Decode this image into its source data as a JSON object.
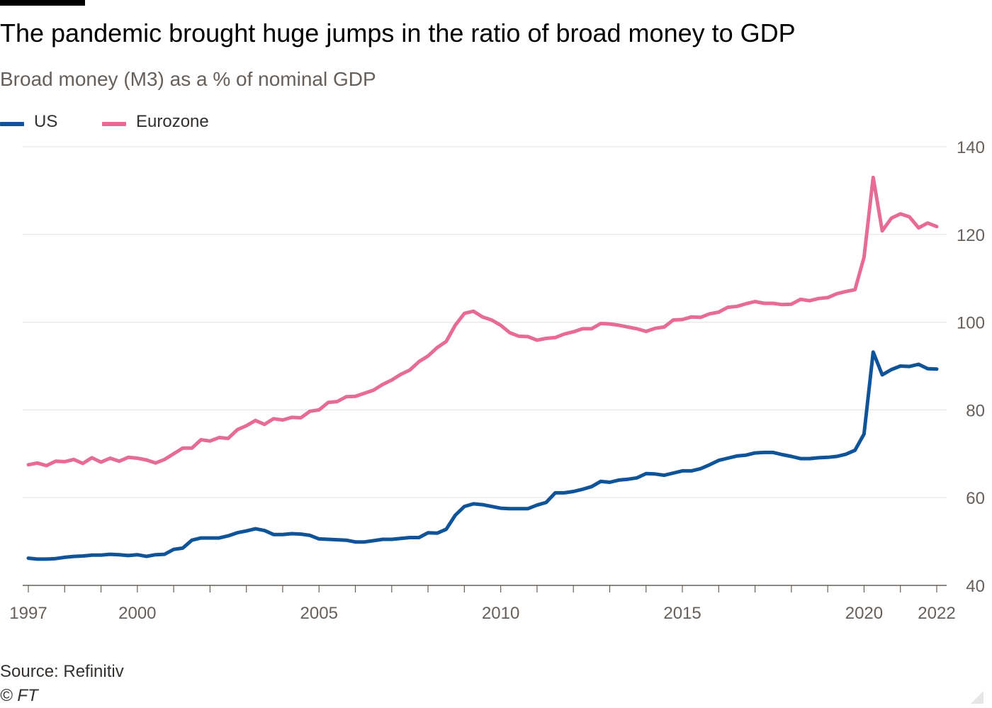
{
  "header": {
    "title": "The pandemic brought huge jumps in the ratio of broad money to GDP",
    "subtitle": "Broad money (M3) as a % of nominal GDP"
  },
  "footer": {
    "source": "Source: Refinitiv",
    "copyright": "© FT"
  },
  "colors": {
    "us": "#0f5499",
    "eurozone": "#e66b95",
    "grid": "#e6e6e6",
    "axis": "#66605c"
  },
  "chart_data": {
    "type": "line",
    "title": "The pandemic brought huge jumps in the ratio of broad money to GDP",
    "subtitle": "Broad money (M3) as a % of nominal GDP",
    "xlabel": "",
    "ylabel": "",
    "xlim": [
      1997,
      2022
    ],
    "ylim": [
      40,
      140
    ],
    "yticks": [
      140,
      120,
      100,
      80,
      60,
      40
    ],
    "xticks": [
      "1997",
      "2000",
      "2005",
      "2010",
      "2015",
      "2020",
      "2022"
    ],
    "grid": true,
    "y_axis_side": "right",
    "legend_position": "top-left",
    "series": [
      {
        "name": "US",
        "color": "#0f5499",
        "x": [
          1997.0,
          1997.25,
          1997.5,
          1997.75,
          1998.0,
          1998.25,
          1998.5,
          1998.75,
          1999.0,
          1999.25,
          1999.5,
          1999.75,
          2000.0,
          2000.25,
          2000.5,
          2000.75,
          2001.0,
          2001.25,
          2001.5,
          2001.75,
          2002.0,
          2002.25,
          2002.5,
          2002.75,
          2003.0,
          2003.25,
          2003.5,
          2003.75,
          2004.0,
          2004.25,
          2004.5,
          2004.75,
          2005.0,
          2005.25,
          2005.5,
          2005.75,
          2006.0,
          2006.25,
          2006.5,
          2006.75,
          2007.0,
          2007.25,
          2007.5,
          2007.75,
          2008.0,
          2008.25,
          2008.5,
          2008.75,
          2009.0,
          2009.25,
          2009.5,
          2009.75,
          2010.0,
          2010.25,
          2010.5,
          2010.75,
          2011.0,
          2011.25,
          2011.5,
          2011.75,
          2012.0,
          2012.25,
          2012.5,
          2012.75,
          2013.0,
          2013.25,
          2013.5,
          2013.75,
          2014.0,
          2014.25,
          2014.5,
          2014.75,
          2015.0,
          2015.25,
          2015.5,
          2015.75,
          2016.0,
          2016.25,
          2016.5,
          2016.75,
          2017.0,
          2017.25,
          2017.5,
          2017.75,
          2018.0,
          2018.25,
          2018.5,
          2018.75,
          2019.0,
          2019.25,
          2019.5,
          2019.75,
          2020.0,
          2020.25,
          2020.5,
          2020.75,
          2021.0,
          2021.25,
          2021.5,
          2021.75,
          2022.0
        ],
        "y": [
          46.2,
          46.0,
          46.0,
          46.1,
          46.4,
          46.6,
          46.7,
          46.9,
          46.9,
          47.1,
          47.0,
          46.8,
          47.0,
          46.6,
          47.0,
          47.1,
          48.2,
          48.5,
          50.3,
          50.8,
          50.8,
          50.8,
          51.3,
          52.0,
          52.4,
          52.9,
          52.5,
          51.6,
          51.6,
          51.8,
          51.7,
          51.4,
          50.6,
          50.5,
          50.4,
          50.3,
          49.9,
          49.9,
          50.2,
          50.5,
          50.5,
          50.7,
          50.9,
          50.9,
          52.0,
          51.9,
          52.8,
          56.0,
          58.0,
          58.6,
          58.4,
          58.0,
          57.6,
          57.5,
          57.5,
          57.5,
          58.3,
          58.9,
          61.1,
          61.1,
          61.4,
          61.9,
          62.5,
          63.7,
          63.5,
          64.0,
          64.2,
          64.5,
          65.5,
          65.4,
          65.1,
          65.6,
          66.1,
          66.1,
          66.6,
          67.5,
          68.5,
          69.0,
          69.5,
          69.7,
          70.2,
          70.3,
          70.3,
          69.8,
          69.4,
          68.9,
          68.9,
          69.1,
          69.2,
          69.4,
          69.9,
          70.8,
          74.5,
          93.2,
          88.0,
          89.2,
          90.0,
          89.9,
          90.4,
          89.4,
          89.3
        ]
      },
      {
        "name": "Eurozone",
        "color": "#e66b95",
        "x": [
          1997.0,
          1997.25,
          1997.5,
          1997.75,
          1998.0,
          1998.25,
          1998.5,
          1998.75,
          1999.0,
          1999.25,
          1999.5,
          1999.75,
          2000.0,
          2000.25,
          2000.5,
          2000.75,
          2001.0,
          2001.25,
          2001.5,
          2001.75,
          2002.0,
          2002.25,
          2002.5,
          2002.75,
          2003.0,
          2003.25,
          2003.5,
          2003.75,
          2004.0,
          2004.25,
          2004.5,
          2004.75,
          2005.0,
          2005.25,
          2005.5,
          2005.75,
          2006.0,
          2006.25,
          2006.5,
          2006.75,
          2007.0,
          2007.25,
          2007.5,
          2007.75,
          2008.0,
          2008.25,
          2008.5,
          2008.75,
          2009.0,
          2009.25,
          2009.5,
          2009.75,
          2010.0,
          2010.25,
          2010.5,
          2010.75,
          2011.0,
          2011.25,
          2011.5,
          2011.75,
          2012.0,
          2012.25,
          2012.5,
          2012.75,
          2013.0,
          2013.25,
          2013.5,
          2013.75,
          2014.0,
          2014.25,
          2014.5,
          2014.75,
          2015.0,
          2015.25,
          2015.5,
          2015.75,
          2016.0,
          2016.25,
          2016.5,
          2016.75,
          2017.0,
          2017.25,
          2017.5,
          2017.75,
          2018.0,
          2018.25,
          2018.5,
          2018.75,
          2019.0,
          2019.25,
          2019.5,
          2019.75,
          2020.0,
          2020.25,
          2020.5,
          2020.75,
          2021.0,
          2021.25,
          2021.5,
          2021.75,
          2022.0
        ],
        "y": [
          67.5,
          67.9,
          67.3,
          68.3,
          68.2,
          68.7,
          67.8,
          69.1,
          68.1,
          69.0,
          68.3,
          69.2,
          69.0,
          68.6,
          67.9,
          68.7,
          70.0,
          71.3,
          71.3,
          73.2,
          72.9,
          73.7,
          73.5,
          75.5,
          76.4,
          77.6,
          76.7,
          78.0,
          77.7,
          78.3,
          78.2,
          79.7,
          80.0,
          81.7,
          81.9,
          83.0,
          83.1,
          83.8,
          84.5,
          85.8,
          86.8,
          88.1,
          89.1,
          91.0,
          92.3,
          94.2,
          95.6,
          99.3,
          102.0,
          102.5,
          101.2,
          100.5,
          99.3,
          97.6,
          96.8,
          96.7,
          95.9,
          96.3,
          96.5,
          97.3,
          97.8,
          98.5,
          98.5,
          99.7,
          99.6,
          99.3,
          98.9,
          98.5,
          97.9,
          98.6,
          98.9,
          100.5,
          100.6,
          101.2,
          101.1,
          101.9,
          102.3,
          103.4,
          103.6,
          104.2,
          104.7,
          104.3,
          104.3,
          104.0,
          104.1,
          105.2,
          104.9,
          105.4,
          105.6,
          106.5,
          107.0,
          107.4,
          114.8,
          133.0,
          120.8,
          123.7,
          124.7,
          124.0,
          121.5,
          122.6,
          121.8
        ]
      }
    ]
  }
}
